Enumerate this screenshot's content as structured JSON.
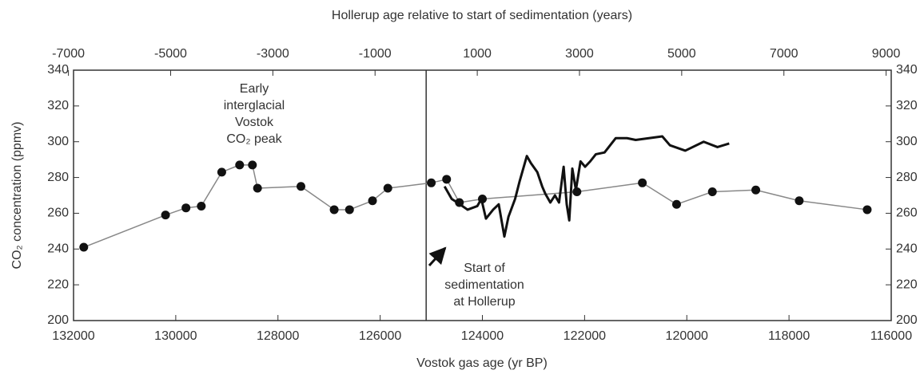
{
  "chart_data": {
    "type": "line",
    "title": "Hollerup age relative to start of sedimentation (years)",
    "xlabel": "Vostok gas age (yr BP)",
    "ylabel": "CO₂ concentration (ppmv)",
    "xlim": [
      132000,
      116000
    ],
    "xticks": [
      132000,
      130000,
      128000,
      126000,
      124000,
      122000,
      120000,
      118000,
      116000
    ],
    "x2lim": [
      -6900,
      9100
    ],
    "x2ticks": [
      -7000,
      -5000,
      -3000,
      -1000,
      1000,
      3000,
      5000,
      7000,
      9000
    ],
    "ylim": [
      200,
      340
    ],
    "yticks": [
      200,
      220,
      240,
      260,
      280,
      300,
      320,
      340
    ],
    "y2lim": [
      200,
      340
    ],
    "y2ticks": [
      200,
      220,
      240,
      260,
      280,
      300,
      320,
      340
    ],
    "reference_line": {
      "x2": 0
    },
    "series": [
      {
        "name": "Vostok",
        "color": "#888888",
        "marker_color": "#111111",
        "x": [
          131800,
          130200,
          129800,
          129500,
          129100,
          128750,
          128500,
          128400,
          127550,
          126900,
          126600,
          126150,
          125850,
          125000,
          124700,
          124450,
          124000,
          122150,
          120870,
          120200,
          119500,
          118650,
          117800,
          116470
        ],
        "values": [
          241,
          259,
          263,
          264,
          283,
          287,
          287,
          274,
          275,
          262,
          262,
          267,
          274,
          277,
          279,
          266,
          268,
          272,
          277,
          265,
          272,
          273,
          267,
          262
        ]
      },
      {
        "name": "Hollerup",
        "color": "#111111",
        "axis": "x2",
        "x": [
          360,
          500,
          610,
          810,
          1000,
          1080,
          1170,
          1310,
          1420,
          1530,
          1610,
          1740,
          1830,
          1970,
          2050,
          2175,
          2270,
          2330,
          2430,
          2520,
          2600,
          2690,
          2750,
          2800,
          2860,
          2930,
          3020,
          3110,
          3210,
          3320,
          3490,
          3600,
          3710,
          3930,
          4100,
          4620,
          4770,
          5070,
          5430,
          5700,
          5930
        ],
        "values": [
          275,
          268,
          266,
          262,
          264,
          268,
          257,
          262,
          265,
          247,
          258,
          268,
          278,
          292,
          288,
          283,
          275,
          271,
          266,
          270,
          266,
          286,
          265,
          256,
          285,
          273,
          289,
          286,
          289,
          293,
          294,
          298,
          302,
          302,
          301,
          303,
          298,
          295,
          300,
          297,
          299
        ]
      }
    ],
    "annotations": [
      {
        "lines": [
          "Early",
          "interglacial",
          "Vostok",
          "CO₂ peak"
        ]
      },
      {
        "lines": [
          "Start of",
          "sedimentation",
          "at Hollerup"
        ]
      }
    ]
  }
}
